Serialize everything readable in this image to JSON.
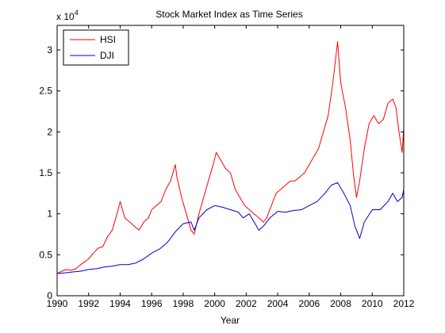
{
  "chart_data": {
    "type": "line",
    "title": "Stock Market Index as Time Series",
    "xlabel": "Year",
    "ylabel": "",
    "y_multiplier_label": "x 10",
    "y_multiplier_exponent": "4",
    "xlim": [
      1990,
      2012
    ],
    "ylim": [
      0,
      3.3
    ],
    "x_ticks": [
      1990,
      1992,
      1994,
      1996,
      1998,
      2000,
      2002,
      2004,
      2006,
      2008,
      2010,
      2012
    ],
    "x_tick_labels": [
      "1990",
      "1992",
      "1994",
      "1996",
      "1998",
      "2000",
      "2002",
      "2004",
      "2006",
      "2008",
      "2010",
      "2012"
    ],
    "y_ticks": [
      0,
      0.5,
      1,
      1.5,
      2,
      2.5,
      3
    ],
    "y_tick_labels": [
      "0",
      "0.5",
      "1",
      "1.5",
      "2",
      "2.5",
      "3"
    ],
    "grid": false,
    "legend_position": "top-left",
    "series": [
      {
        "name": "HSI",
        "color": "#ff0000",
        "x": [
          1990.0,
          1990.3,
          1990.6,
          1990.9,
          1991.2,
          1991.5,
          1991.8,
          1992.0,
          1992.3,
          1992.6,
          1992.9,
          1993.2,
          1993.5,
          1993.8,
          1994.0,
          1994.3,
          1994.6,
          1994.9,
          1995.2,
          1995.5,
          1995.8,
          1996.0,
          1996.3,
          1996.6,
          1996.9,
          1997.2,
          1997.5,
          1997.6,
          1997.9,
          1998.2,
          1998.5,
          1998.7,
          1999.0,
          1999.3,
          1999.6,
          1999.9,
          2000.1,
          2000.4,
          2000.7,
          2001.0,
          2001.3,
          2001.6,
          2001.9,
          2002.2,
          2002.5,
          2002.8,
          2003.1,
          2003.3,
          2003.6,
          2003.9,
          2004.2,
          2004.5,
          2004.8,
          2005.1,
          2005.4,
          2005.7,
          2006.0,
          2006.3,
          2006.6,
          2006.9,
          2007.2,
          2007.5,
          2007.8,
          2008.0,
          2008.3,
          2008.6,
          2008.8,
          2009.0,
          2009.2,
          2009.5,
          2009.8,
          2010.1,
          2010.4,
          2010.7,
          2011.0,
          2011.3,
          2011.5,
          2011.7,
          2011.9,
          2012.0
        ],
        "values": [
          0.27,
          0.3,
          0.32,
          0.31,
          0.33,
          0.38,
          0.42,
          0.45,
          0.52,
          0.58,
          0.6,
          0.72,
          0.8,
          1.0,
          1.15,
          0.95,
          0.9,
          0.85,
          0.8,
          0.9,
          0.95,
          1.05,
          1.1,
          1.15,
          1.3,
          1.4,
          1.6,
          1.45,
          1.2,
          1.0,
          0.8,
          0.75,
          1.0,
          1.2,
          1.4,
          1.6,
          1.75,
          1.65,
          1.55,
          1.5,
          1.3,
          1.2,
          1.1,
          1.05,
          1.0,
          0.95,
          0.9,
          0.95,
          1.1,
          1.25,
          1.3,
          1.35,
          1.4,
          1.4,
          1.45,
          1.5,
          1.6,
          1.7,
          1.8,
          2.0,
          2.2,
          2.6,
          3.1,
          2.6,
          2.3,
          1.9,
          1.5,
          1.2,
          1.4,
          1.8,
          2.1,
          2.2,
          2.1,
          2.15,
          2.35,
          2.4,
          2.3,
          2.0,
          1.75,
          2.05
        ]
      },
      {
        "name": "DJI",
        "color": "#0000cc",
        "x": [
          1990.0,
          1990.5,
          1991.0,
          1991.5,
          1992.0,
          1992.5,
          1993.0,
          1993.5,
          1994.0,
          1994.5,
          1995.0,
          1995.5,
          1996.0,
          1996.5,
          1997.0,
          1997.5,
          1998.0,
          1998.5,
          1998.7,
          1999.0,
          1999.5,
          2000.0,
          2000.5,
          2001.0,
          2001.5,
          2001.8,
          2002.2,
          2002.5,
          2002.8,
          2003.1,
          2003.5,
          2004.0,
          2004.5,
          2005.0,
          2005.5,
          2006.0,
          2006.5,
          2007.0,
          2007.4,
          2007.8,
          2008.2,
          2008.6,
          2008.9,
          2009.2,
          2009.5,
          2010.0,
          2010.5,
          2011.0,
          2011.3,
          2011.6,
          2011.9,
          2012.0
        ],
        "values": [
          0.27,
          0.28,
          0.29,
          0.3,
          0.32,
          0.33,
          0.35,
          0.36,
          0.38,
          0.38,
          0.4,
          0.45,
          0.52,
          0.57,
          0.65,
          0.78,
          0.88,
          0.9,
          0.8,
          0.95,
          1.05,
          1.1,
          1.08,
          1.05,
          1.02,
          0.95,
          1.0,
          0.9,
          0.8,
          0.85,
          0.95,
          1.03,
          1.02,
          1.04,
          1.05,
          1.1,
          1.15,
          1.25,
          1.35,
          1.38,
          1.25,
          1.1,
          0.85,
          0.7,
          0.9,
          1.05,
          1.05,
          1.15,
          1.25,
          1.15,
          1.2,
          1.3
        ]
      }
    ]
  }
}
